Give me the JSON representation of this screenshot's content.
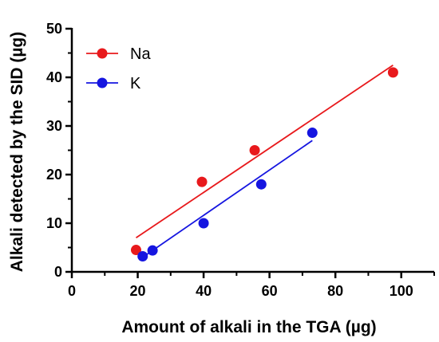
{
  "chart_data": {
    "type": "scatter",
    "title": "",
    "xlabel": "Amount of alkali in the TGA (µg)",
    "ylabel": "Alkali detected by the SID (µg)",
    "xlim": [
      0,
      110
    ],
    "ylim": [
      0,
      50
    ],
    "xticks": [
      0,
      20,
      40,
      60,
      80,
      100
    ],
    "yticks": [
      0,
      10,
      20,
      30,
      40,
      50
    ],
    "grid": false,
    "legend": "top-left",
    "series": [
      {
        "name": "Na",
        "color": "#e8191c",
        "points": [
          {
            "x": 19.5,
            "y": 4.5
          },
          {
            "x": 39.5,
            "y": 18.5
          },
          {
            "x": 55.5,
            "y": 25.0
          },
          {
            "x": 97.5,
            "y": 41.0
          }
        ],
        "fit": {
          "x": [
            19.5,
            97.5
          ],
          "y": [
            7.0,
            42.5
          ]
        }
      },
      {
        "name": "K",
        "color": "#1515e0",
        "points": [
          {
            "x": 21.5,
            "y": 3.2
          },
          {
            "x": 24.5,
            "y": 4.4
          },
          {
            "x": 40.0,
            "y": 10.0
          },
          {
            "x": 57.5,
            "y": 18.0
          },
          {
            "x": 73.0,
            "y": 28.6
          }
        ],
        "fit": {
          "x": [
            21.5,
            73.0
          ],
          "y": [
            3.0,
            27.0
          ]
        }
      }
    ]
  }
}
